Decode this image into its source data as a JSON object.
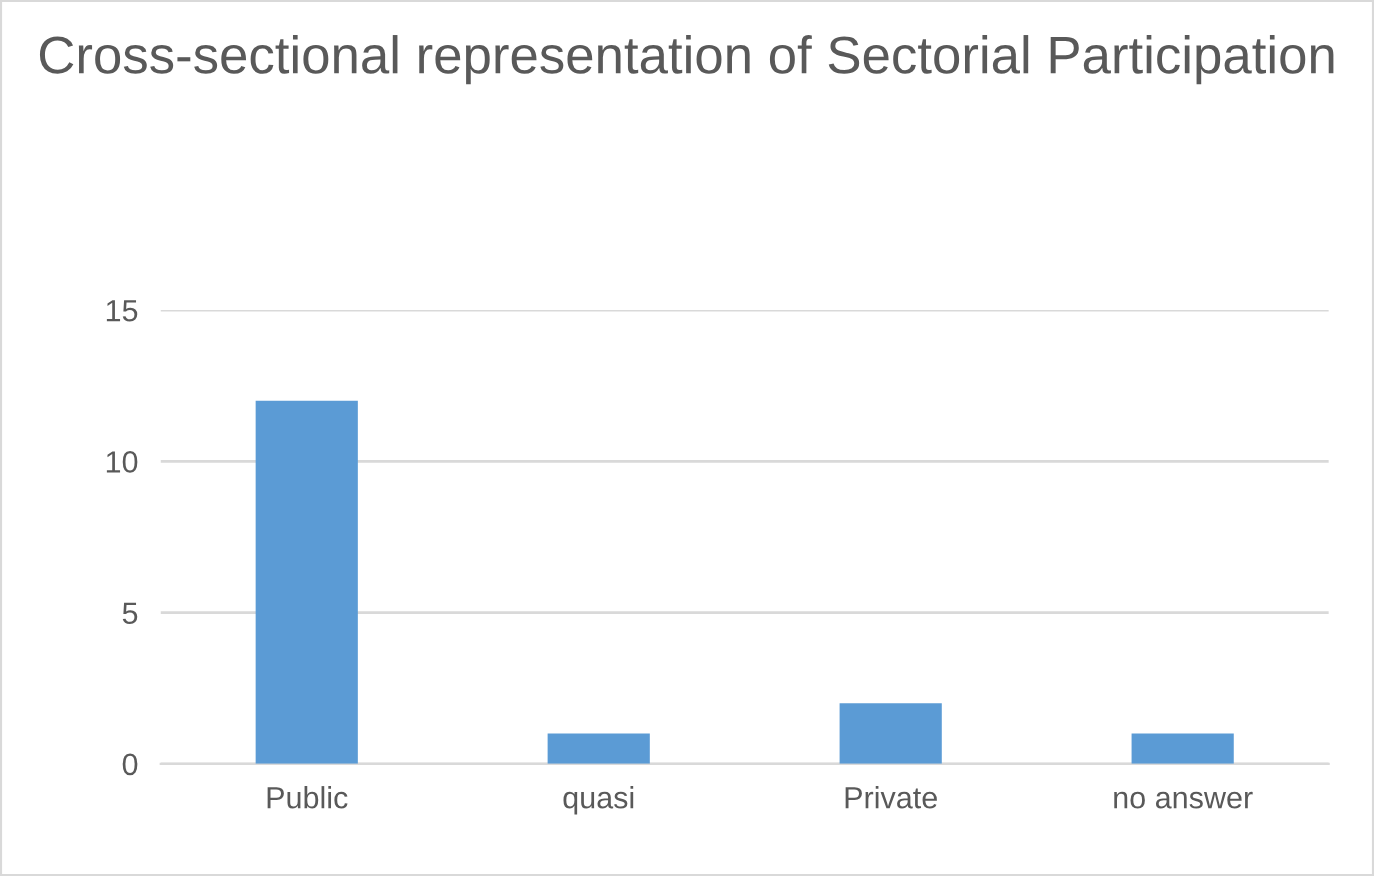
{
  "chart_data": {
    "type": "bar",
    "title": "Cross-sectional representation of Sectorial Participation",
    "categories": [
      "Public",
      "quasi",
      "Private",
      "no answer"
    ],
    "values": [
      12,
      1,
      2,
      1
    ],
    "color": "#5b9bd5",
    "ylim": [
      0,
      15
    ],
    "yticks": [
      0,
      5,
      10,
      15
    ],
    "grid": "y",
    "legend": false
  }
}
